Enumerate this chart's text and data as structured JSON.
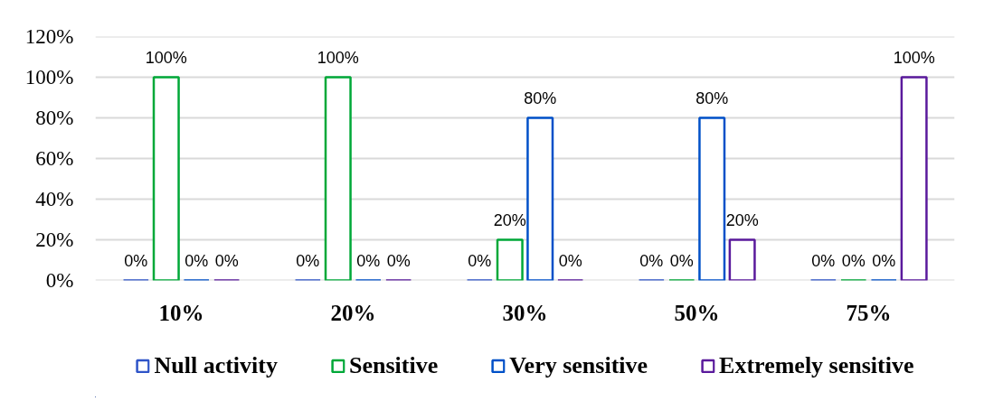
{
  "chart_data": {
    "type": "bar",
    "categories": [
      "10%",
      "20%",
      "30%",
      "50%",
      "75%"
    ],
    "series": [
      {
        "name": "Null activity",
        "color": "#2e54c8",
        "values": [
          0,
          0,
          0,
          0,
          0
        ],
        "value_labels": [
          "0%",
          "0%",
          "0%",
          "0%",
          "0%"
        ]
      },
      {
        "name": "Sensitive",
        "color": "#00a838",
        "values": [
          100,
          100,
          20,
          0,
          0
        ],
        "value_labels": [
          "100%",
          "100%",
          "20%",
          "0%",
          "0%"
        ]
      },
      {
        "name": "Very sensitive",
        "color": "#0050c8",
        "values": [
          0,
          0,
          80,
          80,
          0
        ],
        "value_labels": [
          "0%",
          "0%",
          "80%",
          "80%",
          "0%"
        ]
      },
      {
        "name": "Extremely sensitive",
        "color": "#5a1a9c",
        "values": [
          0,
          0,
          0,
          20,
          100
        ],
        "value_labels": [
          "0%",
          "0%",
          "0%",
          "20%",
          "100%"
        ]
      }
    ],
    "ylim": [
      0,
      120
    ],
    "yticks": [
      {
        "value": 0,
        "label": "0%"
      },
      {
        "value": 20,
        "label": "20%"
      },
      {
        "value": 40,
        "label": "40%"
      },
      {
        "value": 60,
        "label": "60%"
      },
      {
        "value": 80,
        "label": "80%"
      },
      {
        "value": 100,
        "label": "100%"
      },
      {
        "value": 120,
        "label": "120%"
      }
    ],
    "grid": "y",
    "legend": "bottom"
  }
}
